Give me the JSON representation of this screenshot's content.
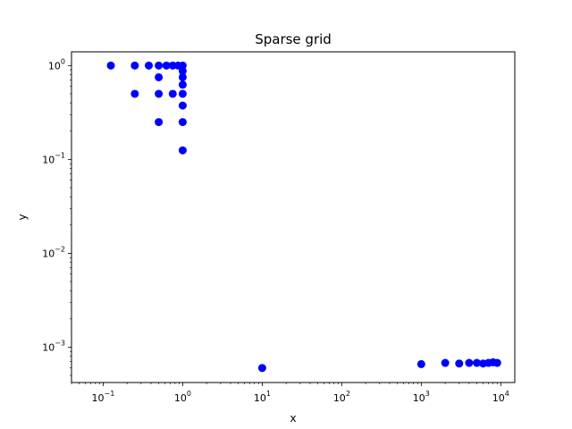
{
  "chart_data": {
    "type": "scatter",
    "title": "Sparse grid",
    "xlabel": "x",
    "ylabel": "y",
    "xscale": "log",
    "yscale": "log",
    "xlim": [
      0.04,
      15000
    ],
    "ylim": [
      0.00042,
      1.4
    ],
    "grid": false,
    "marker_color": "#0000ff",
    "x_ticks": [
      {
        "base": "10",
        "exp": "−1",
        "value": 0.1
      },
      {
        "base": "10",
        "exp": "0",
        "value": 1
      },
      {
        "base": "10",
        "exp": "1",
        "value": 10
      },
      {
        "base": "10",
        "exp": "2",
        "value": 100
      },
      {
        "base": "10",
        "exp": "3",
        "value": 1000
      },
      {
        "base": "10",
        "exp": "4",
        "value": 10000
      }
    ],
    "y_ticks": [
      {
        "base": "10",
        "exp": "−3",
        "value": 0.001
      },
      {
        "base": "10",
        "exp": "−2",
        "value": 0.01
      },
      {
        "base": "10",
        "exp": "−1",
        "value": 0.1
      },
      {
        "base": "10",
        "exp": "0",
        "value": 1
      }
    ],
    "points": [
      {
        "x": 0.125,
        "y": 1.0
      },
      {
        "x": 0.25,
        "y": 1.0
      },
      {
        "x": 0.375,
        "y": 1.0
      },
      {
        "x": 0.5,
        "y": 1.0
      },
      {
        "x": 0.625,
        "y": 1.0
      },
      {
        "x": 0.75,
        "y": 1.0
      },
      {
        "x": 0.875,
        "y": 1.0
      },
      {
        "x": 1.0,
        "y": 1.0
      },
      {
        "x": 1.0,
        "y": 0.875
      },
      {
        "x": 0.5,
        "y": 0.75
      },
      {
        "x": 1.0,
        "y": 0.75
      },
      {
        "x": 1.0,
        "y": 0.625
      },
      {
        "x": 0.25,
        "y": 0.5
      },
      {
        "x": 0.5,
        "y": 0.5
      },
      {
        "x": 0.75,
        "y": 0.5
      },
      {
        "x": 1.0,
        "y": 0.5
      },
      {
        "x": 1.0,
        "y": 0.375
      },
      {
        "x": 0.5,
        "y": 0.25
      },
      {
        "x": 1.0,
        "y": 0.25
      },
      {
        "x": 1.0,
        "y": 0.125
      },
      {
        "x": 10,
        "y": 0.0006
      },
      {
        "x": 1000,
        "y": 0.00066
      },
      {
        "x": 2000,
        "y": 0.00068
      },
      {
        "x": 3000,
        "y": 0.00067
      },
      {
        "x": 4000,
        "y": 0.00068
      },
      {
        "x": 5000,
        "y": 0.00068
      },
      {
        "x": 6000,
        "y": 0.00067
      },
      {
        "x": 7000,
        "y": 0.00068
      },
      {
        "x": 8000,
        "y": 0.00069
      },
      {
        "x": 9000,
        "y": 0.00068
      }
    ]
  }
}
